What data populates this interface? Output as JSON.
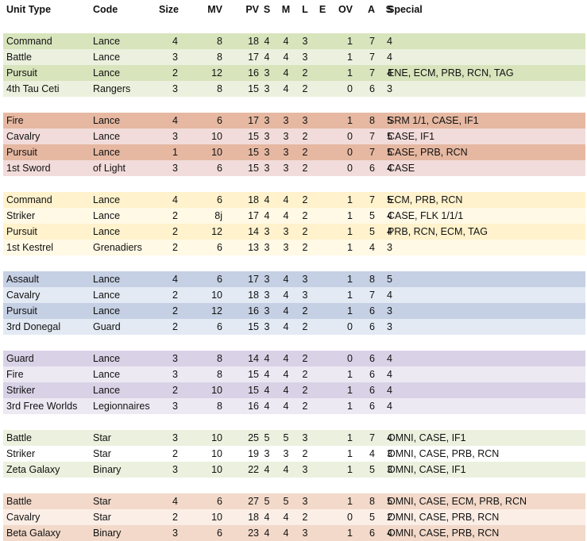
{
  "headers": [
    "Unit Type",
    "Code",
    "Size",
    "MV",
    "PV",
    "S",
    "M",
    "L",
    "E",
    "OV",
    "A",
    "S",
    "Special"
  ],
  "groups": [
    {
      "colors": [
        "#d8e4bc",
        "#ebf1de"
      ],
      "rows": [
        [
          "Command",
          "Lance",
          "4",
          "8",
          "18",
          "4",
          "4",
          "3",
          "",
          "1",
          "7",
          "4",
          ""
        ],
        [
          "Battle",
          "Lance",
          "3",
          "8",
          "17",
          "4",
          "4",
          "3",
          "",
          "1",
          "7",
          "4",
          ""
        ],
        [
          "Pursuit",
          "Lance",
          "2",
          "12",
          "16",
          "3",
          "4",
          "2",
          "",
          "1",
          "7",
          "4",
          "ENE, ECM, PRB, RCN, TAG"
        ],
        [
          "4th Tau Ceti",
          "Rangers",
          "3",
          "8",
          "15",
          "3",
          "4",
          "2",
          "",
          "0",
          "6",
          "3",
          ""
        ]
      ]
    },
    {
      "colors": [
        "#e6b8a2",
        "#f2dcdb"
      ],
      "rows": [
        [
          "Fire",
          "Lance",
          "4",
          "6",
          "17",
          "3",
          "3",
          "3",
          "",
          "1",
          "8",
          "5",
          "SRM 1/1, CASE, IF1"
        ],
        [
          "Cavalry",
          "Lance",
          "3",
          "10",
          "15",
          "3",
          "3",
          "2",
          "",
          "0",
          "7",
          "5",
          "CASE, IF1"
        ],
        [
          "Pursuit",
          "Lance",
          "1",
          "10",
          "15",
          "3",
          "3",
          "2",
          "",
          "0",
          "7",
          "5",
          "CASE, PRB, RCN"
        ],
        [
          "1st Sword",
          "of Light",
          "3",
          "6",
          "15",
          "3",
          "3",
          "2",
          "",
          "0",
          "6",
          "4",
          "CASE"
        ]
      ]
    },
    {
      "colors": [
        "#fff2cc",
        "#fff9e5"
      ],
      "rows": [
        [
          "Command",
          "Lance",
          "4",
          "6",
          "18",
          "4",
          "4",
          "2",
          "",
          "1",
          "7",
          "5",
          "ECM, PRB, RCN"
        ],
        [
          "Striker",
          "Lance",
          "2",
          "8j",
          "17",
          "4",
          "4",
          "2",
          "",
          "1",
          "5",
          "4",
          "CASE, FLK 1/1/1"
        ],
        [
          "Pursuit",
          "Lance",
          "2",
          "12",
          "14",
          "3",
          "3",
          "2",
          "",
          "1",
          "5",
          "4",
          "PRB, RCN, ECM, TAG"
        ],
        [
          "1st Kestrel",
          "Grenadiers",
          "2",
          "6",
          "13",
          "3",
          "3",
          "2",
          "",
          "1",
          "4",
          "3",
          ""
        ]
      ]
    },
    {
      "colors": [
        "#c5d0e4",
        "#e4eaf4"
      ],
      "rows": [
        [
          "Assault",
          "Lance",
          "4",
          "6",
          "17",
          "3",
          "4",
          "3",
          "",
          "1",
          "8",
          "5",
          ""
        ],
        [
          "Cavalry",
          "Lance",
          "2",
          "10",
          "18",
          "3",
          "4",
          "3",
          "",
          "1",
          "7",
          "4",
          ""
        ],
        [
          "Pursuit",
          "Lance",
          "2",
          "12",
          "16",
          "3",
          "4",
          "2",
          "",
          "1",
          "6",
          "3",
          ""
        ],
        [
          "3rd Donegal",
          "Guard",
          "2",
          "6",
          "15",
          "3",
          "4",
          "2",
          "",
          "0",
          "6",
          "3",
          ""
        ]
      ]
    },
    {
      "colors": [
        "#d9d2e6",
        "#ede9f3"
      ],
      "rows": [
        [
          "Guard",
          "Lance",
          "3",
          "8",
          "14",
          "4",
          "4",
          "2",
          "",
          "0",
          "6",
          "4",
          ""
        ],
        [
          "Fire",
          "Lance",
          "3",
          "8",
          "15",
          "4",
          "4",
          "2",
          "",
          "1",
          "6",
          "4",
          ""
        ],
        [
          "Striker",
          "Lance",
          "2",
          "10",
          "15",
          "4",
          "4",
          "2",
          "",
          "1",
          "6",
          "4",
          ""
        ],
        [
          "3rd Free Worlds",
          "Legionnaires",
          "3",
          "8",
          "16",
          "4",
          "4",
          "2",
          "",
          "1",
          "6",
          "4",
          ""
        ]
      ]
    },
    {
      "colors": [
        "#ebf1de",
        "#ffffff"
      ],
      "rows": [
        [
          "Battle",
          "Star",
          "3",
          "10",
          "25",
          "5",
          "5",
          "3",
          "",
          "1",
          "7",
          "4",
          "OMNI, CASE, IF1"
        ],
        [
          "Striker",
          "Star",
          "2",
          "10",
          "19",
          "3",
          "3",
          "2",
          "",
          "1",
          "4",
          "3",
          "OMNI, CASE, PRB, RCN"
        ],
        [
          "Zeta Galaxy",
          "Binary",
          "3",
          "10",
          "22",
          "4",
          "4",
          "3",
          "",
          "1",
          "5",
          "3",
          "OMNI, CASE, IF1"
        ]
      ]
    },
    {
      "colors": [
        "#f2d9c9",
        "#fbeee6"
      ],
      "rows": [
        [
          "Battle",
          "Star",
          "4",
          "6",
          "27",
          "5",
          "5",
          "3",
          "",
          "1",
          "8",
          "5",
          "OMNI, CASE, ECM, PRB, RCN"
        ],
        [
          "Cavalry",
          "Star",
          "2",
          "10",
          "18",
          "4",
          "4",
          "2",
          "",
          "0",
          "5",
          "2",
          "OMNI, CASE, PRB, RCN"
        ],
        [
          "Beta Galaxy",
          "Binary",
          "3",
          "6",
          "23",
          "4",
          "4",
          "3",
          "",
          "1",
          "6",
          "4",
          "OMNI, CASE, PRB, RCN"
        ]
      ]
    }
  ]
}
